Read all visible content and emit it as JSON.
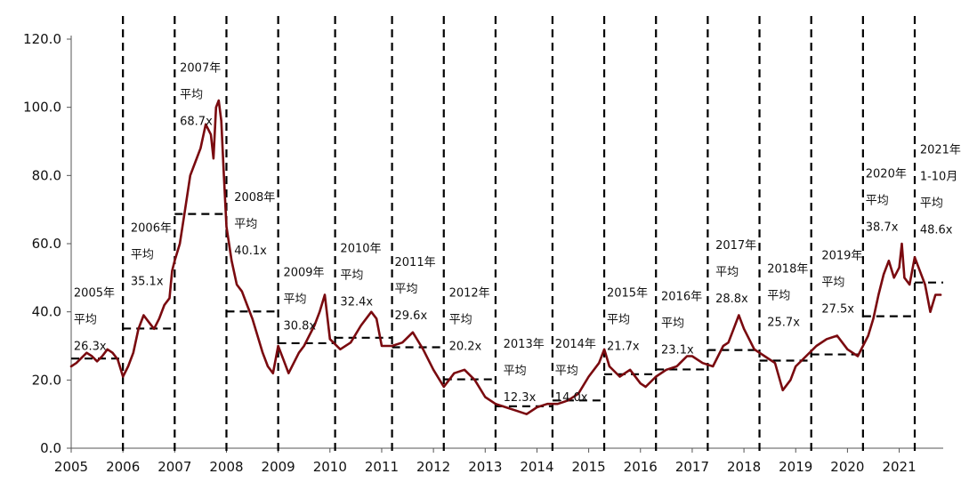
{
  "chart_data": {
    "type": "line",
    "title": "",
    "xlabel": "",
    "ylabel": "",
    "ylim": [
      0,
      120
    ],
    "yticks": [
      "0.0",
      "20.0",
      "40.0",
      "60.0",
      "80.0",
      "100.0",
      "120.0"
    ],
    "xticks": [
      "2005",
      "2006",
      "2007",
      "2008",
      "2009",
      "2010",
      "2011",
      "2012",
      "2013",
      "2014",
      "2015",
      "2016",
      "2017",
      "2018",
      "2019",
      "2020",
      "2021"
    ],
    "xlim": [
      2005.0,
      2021.85
    ],
    "grid": false,
    "legend": "none",
    "colors": {
      "series": "#7a0a0f",
      "averages": "#000000",
      "year_boundaries": "#000000"
    },
    "year_boundaries": [
      2006.0,
      2007.0,
      2008.0,
      2009.0,
      2010.1,
      2011.2,
      2012.2,
      2013.2,
      2014.3,
      2015.3,
      2016.3,
      2017.3,
      2018.3,
      2019.3,
      2020.3,
      2021.3
    ],
    "series": [
      {
        "x": [
          2005.0,
          2005.1,
          2005.2,
          2005.3,
          2005.4,
          2005.5,
          2005.6,
          2005.7,
          2005.8,
          2005.9,
          2006.0,
          2006.1,
          2006.2,
          2006.3,
          2006.4,
          2006.5,
          2006.6,
          2006.7,
          2006.8,
          2006.9,
          2006.95,
          2007.0,
          2007.1,
          2007.2,
          2007.3,
          2007.4,
          2007.5,
          2007.6,
          2007.7,
          2007.75,
          2007.8,
          2007.85,
          2007.9,
          2007.95,
          2008.0,
          2008.1,
          2008.2,
          2008.3,
          2008.4,
          2008.5,
          2008.6,
          2008.7,
          2008.8,
          2008.9,
          2009.0,
          2009.1,
          2009.2,
          2009.3,
          2009.4,
          2009.5,
          2009.6,
          2009.7,
          2009.8,
          2009.9,
          2010.0,
          2010.2,
          2010.4,
          2010.6,
          2010.8,
          2010.9,
          2011.0,
          2011.2,
          2011.4,
          2011.6,
          2011.8,
          2012.0,
          2012.2,
          2012.4,
          2012.6,
          2012.8,
          2013.0,
          2013.2,
          2013.4,
          2013.6,
          2013.8,
          2014.0,
          2014.2,
          2014.4,
          2014.6,
          2014.8,
          2015.0,
          2015.2,
          2015.3,
          2015.4,
          2015.6,
          2015.8,
          2016.0,
          2016.1,
          2016.3,
          2016.5,
          2016.7,
          2016.9,
          2017.0,
          2017.2,
          2017.4,
          2017.6,
          2017.7,
          2017.8,
          2017.9,
          2018.0,
          2018.2,
          2018.4,
          2018.6,
          2018.75,
          2018.9,
          2019.0,
          2019.2,
          2019.4,
          2019.6,
          2019.8,
          2020.0,
          2020.2,
          2020.4,
          2020.5,
          2020.6,
          2020.7,
          2020.8,
          2020.9,
          2021.0,
          2021.05,
          2021.1,
          2021.2,
          2021.3,
          2021.4,
          2021.5,
          2021.6,
          2021.7,
          2021.8
        ],
        "values": [
          24.0,
          25.0,
          26.5,
          28.0,
          27.0,
          25.5,
          27.0,
          29.0,
          28.0,
          26.0,
          21.0,
          24.0,
          28.0,
          35.0,
          39.0,
          37.0,
          35.0,
          38.0,
          42.0,
          44.0,
          52.0,
          55.0,
          60.0,
          70.0,
          80.0,
          84.0,
          88.0,
          95.0,
          92.0,
          85.0,
          100.0,
          102.0,
          96.0,
          80.0,
          65.0,
          55.0,
          48.0,
          46.0,
          42.0,
          38.0,
          33.0,
          28.0,
          24.0,
          22.0,
          30.0,
          26.0,
          22.0,
          25.0,
          28.0,
          30.0,
          33.0,
          36.0,
          40.0,
          45.0,
          32.0,
          29.0,
          31.0,
          36.0,
          40.0,
          38.0,
          30.0,
          30.0,
          31.0,
          34.0,
          29.0,
          23.0,
          18.0,
          22.0,
          23.0,
          20.0,
          15.0,
          13.0,
          12.0,
          11.0,
          10.0,
          12.0,
          13.0,
          13.0,
          14.0,
          16.0,
          21.0,
          25.0,
          29.0,
          24.0,
          21.0,
          23.0,
          19.0,
          18.0,
          21.0,
          23.0,
          24.0,
          27.0,
          27.0,
          25.0,
          24.0,
          30.0,
          31.0,
          35.0,
          39.0,
          35.0,
          29.0,
          27.0,
          25.0,
          17.0,
          20.0,
          24.0,
          27.0,
          30.0,
          32.0,
          33.0,
          29.0,
          27.0,
          33.0,
          38.0,
          45.0,
          51.0,
          55.0,
          50.0,
          53.0,
          60.0,
          50.0,
          48.0,
          56.0,
          52.0,
          48.0,
          40.0,
          45.0,
          45.0
        ]
      }
    ],
    "averages": [
      {
        "from": 2005.0,
        "to": 2006.0,
        "value": 26.3
      },
      {
        "from": 2006.0,
        "to": 2007.0,
        "value": 35.1
      },
      {
        "from": 2007.0,
        "to": 2008.0,
        "value": 68.7
      },
      {
        "from": 2008.0,
        "to": 2009.0,
        "value": 40.1
      },
      {
        "from": 2009.0,
        "to": 2010.1,
        "value": 30.8
      },
      {
        "from": 2010.1,
        "to": 2011.2,
        "value": 32.4
      },
      {
        "from": 2011.2,
        "to": 2012.2,
        "value": 29.6
      },
      {
        "from": 2012.2,
        "to": 2013.2,
        "value": 20.2
      },
      {
        "from": 2013.2,
        "to": 2014.3,
        "value": 12.3
      },
      {
        "from": 2014.3,
        "to": 2015.3,
        "value": 14.0
      },
      {
        "from": 2015.3,
        "to": 2016.3,
        "value": 21.7
      },
      {
        "from": 2016.3,
        "to": 2017.3,
        "value": 23.1
      },
      {
        "from": 2017.3,
        "to": 2018.3,
        "value": 28.8
      },
      {
        "from": 2018.3,
        "to": 2019.3,
        "value": 25.7
      },
      {
        "from": 2019.3,
        "to": 2020.3,
        "value": 27.5
      },
      {
        "from": 2020.3,
        "to": 2021.3,
        "value": 38.7
      },
      {
        "from": 2021.3,
        "to": 2021.85,
        "value": 48.6
      }
    ],
    "annotations": [
      {
        "lines": [
          "2005年",
          "平均",
          "26.3x"
        ],
        "x": 2005.05,
        "y": 44.5
      },
      {
        "lines": [
          "2006年",
          "平均",
          "35.1x"
        ],
        "x": 2006.15,
        "y": 63.5
      },
      {
        "lines": [
          "2007年",
          "平均",
          "68.7x"
        ],
        "x": 2007.1,
        "y": 110.5
      },
      {
        "lines": [
          "2008年",
          "平均",
          "40.1x"
        ],
        "x": 2008.15,
        "y": 72.5
      },
      {
        "lines": [
          "2009年",
          "平均",
          "30.8x"
        ],
        "x": 2009.1,
        "y": 50.5
      },
      {
        "lines": [
          "2010年",
          "平均",
          "32.4x"
        ],
        "x": 2010.2,
        "y": 57.5
      },
      {
        "lines": [
          "2011年",
          "平均",
          "29.6x"
        ],
        "x": 2011.25,
        "y": 53.5
      },
      {
        "lines": [
          "2012年",
          "平均",
          "20.2x"
        ],
        "x": 2012.3,
        "y": 44.5
      },
      {
        "lines": [
          "2013年",
          "平均",
          "12.3x"
        ],
        "x": 2013.35,
        "y": 29.5
      },
      {
        "lines": [
          "2014年",
          "平均",
          "14.0x"
        ],
        "x": 2014.35,
        "y": 29.5
      },
      {
        "lines": [
          "2015年",
          "平均",
          "21.7x"
        ],
        "x": 2015.35,
        "y": 44.5
      },
      {
        "lines": [
          "2016年",
          "平均",
          "23.1x"
        ],
        "x": 2016.4,
        "y": 43.5
      },
      {
        "lines": [
          "2017年",
          "平均",
          "28.8x"
        ],
        "x": 2017.45,
        "y": 58.5
      },
      {
        "lines": [
          "2018年",
          "平均",
          "25.7x"
        ],
        "x": 2018.45,
        "y": 51.5
      },
      {
        "lines": [
          "2019年",
          "平均",
          "27.5x"
        ],
        "x": 2019.5,
        "y": 55.5
      },
      {
        "lines": [
          "2020年",
          "平均",
          "38.7x"
        ],
        "x": 2020.35,
        "y": 79.5
      },
      {
        "lines": [
          "2021年",
          "1-10月",
          "平均",
          "48.6x"
        ],
        "x": 2021.4,
        "y": 86.5
      }
    ]
  }
}
